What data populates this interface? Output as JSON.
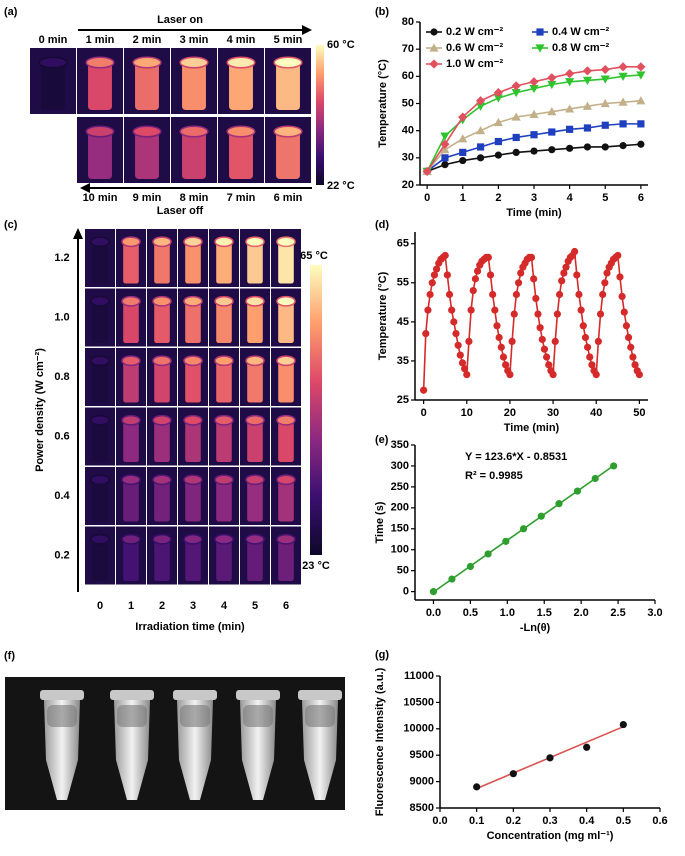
{
  "chart_data": [
    {
      "type": "line",
      "label": "(b)",
      "xlabel": "Time (min)",
      "ylabel": "Temperature (°C)",
      "legend": "upper left",
      "x": [
        0,
        0.5,
        1,
        1.5,
        2,
        2.5,
        3,
        3.5,
        4,
        4.5,
        5,
        5.5,
        6
      ],
      "xlim": [
        -0.2,
        6.2
      ],
      "xticks": [
        0,
        1,
        2,
        3,
        4,
        5,
        6
      ],
      "ylim": [
        20,
        80
      ],
      "yticks": [
        20,
        30,
        40,
        50,
        60,
        70,
        80
      ],
      "series": [
        {
          "name": "0.2 W cm⁻²",
          "color": "#111111",
          "marker": "circle",
          "values": [
            25,
            27.5,
            29,
            30,
            31,
            32,
            32.5,
            33,
            33.5,
            34,
            34,
            34.5,
            35
          ]
        },
        {
          "name": "0.4 W cm⁻²",
          "color": "#1f3fbf",
          "marker": "square",
          "values": [
            25,
            30,
            32,
            34,
            36,
            37.5,
            38.5,
            39.5,
            40.5,
            41,
            42,
            42.5,
            42.5
          ]
        },
        {
          "name": "0.6 W cm⁻²",
          "color": "#c3b08a",
          "marker": "triangle",
          "values": [
            25,
            33,
            37,
            40,
            43,
            45,
            46,
            47,
            48,
            49,
            50,
            50.5,
            51
          ]
        },
        {
          "name": "0.8 W cm⁻²",
          "color": "#2fc42f",
          "marker": "triangle-down",
          "values": [
            25,
            38,
            44,
            49,
            52,
            54,
            55.5,
            57,
            58,
            58.5,
            59,
            60,
            60.5
          ]
        },
        {
          "name": "1.0 W cm⁻²",
          "color": "#e0505e",
          "marker": "diamond",
          "values": [
            25,
            35,
            45,
            51,
            54,
            56.5,
            58,
            59.5,
            61,
            62,
            62.5,
            63.5,
            63.5
          ]
        }
      ]
    },
    {
      "type": "line",
      "label": "(d)",
      "xlabel": "Time (min)",
      "ylabel": "Temperature (°C)",
      "x": [
        0,
        0.5,
        1,
        1.5,
        2,
        2.5,
        3,
        3.5,
        4,
        4.5,
        5,
        5.5,
        6,
        6.5,
        7,
        7.5,
        8,
        8.5,
        9,
        9.5,
        10,
        10.5,
        11,
        11.5,
        12,
        12.5,
        13,
        13.5,
        14,
        14.5,
        15,
        15.5,
        16,
        16.5,
        17,
        17.5,
        18,
        18.5,
        19,
        19.5,
        20,
        20.5,
        21,
        21.5,
        22,
        22.5,
        23,
        23.5,
        24,
        24.5,
        25,
        25.5,
        26,
        26.5,
        27,
        27.5,
        28,
        28.5,
        29,
        29.5,
        30,
        30.5,
        31,
        31.5,
        32,
        32.5,
        33,
        33.5,
        34,
        34.5,
        35,
        35.5,
        36,
        36.5,
        37,
        37.5,
        38,
        38.5,
        39,
        39.5,
        40,
        40.5,
        41,
        41.5,
        42,
        42.5,
        43,
        43.5,
        44,
        44.5,
        45,
        45.5,
        46,
        46.5,
        47,
        47.5,
        48,
        48.5,
        49,
        49.5,
        50
      ],
      "xlim": [
        -2,
        52
      ],
      "xticks": [
        0,
        10,
        20,
        30,
        40,
        50
      ],
      "ylim": [
        25,
        68
      ],
      "yticks": [
        25,
        35,
        45,
        55,
        65
      ],
      "series": [
        {
          "color": "#d42a2a",
          "marker": "circle",
          "values": [
            27.5,
            42,
            48,
            52,
            55,
            57,
            58.5,
            60,
            61,
            61.5,
            62,
            57,
            52,
            48,
            45,
            42,
            39,
            36.5,
            34.5,
            33,
            31.5,
            40,
            48,
            53,
            56,
            58,
            59.5,
            60.5,
            61,
            61.5,
            61.5,
            57,
            52,
            48,
            44,
            41,
            38.5,
            36,
            34,
            32.5,
            31.5,
            40,
            47,
            52,
            55,
            57.5,
            59,
            60,
            61,
            61.5,
            61.5,
            56,
            51,
            47,
            43.5,
            40.5,
            38,
            36,
            34,
            32.5,
            31.5,
            40,
            47,
            52,
            55.5,
            57.5,
            59,
            60.5,
            61.5,
            62,
            63,
            57,
            52,
            48,
            44,
            41,
            38.5,
            36,
            34,
            32.5,
            31.5,
            40,
            47,
            52,
            55,
            57.5,
            59,
            60,
            61,
            61.5,
            62,
            56.5,
            51.5,
            47.5,
            44,
            41,
            38.5,
            36,
            34,
            32.5,
            31.5
          ]
        }
      ]
    },
    {
      "type": "scatter",
      "label": "(e)",
      "xlabel": "-Ln(θ)",
      "ylabel": "Time (s)",
      "annotations": [
        "Y = 123.6*X - 0.8531",
        "R² = 0.9985"
      ],
      "x": [
        0,
        0.25,
        0.5,
        0.74,
        0.98,
        1.22,
        1.46,
        1.7,
        1.95,
        2.19,
        2.44
      ],
      "xlim": [
        -0.25,
        3.0
      ],
      "xticks": [
        {
          "value": 0,
          "label": "0.0"
        },
        {
          "value": 0.5,
          "label": "0.5"
        },
        {
          "value": 1,
          "label": "1.0"
        },
        {
          "value": 1.5,
          "label": "1.5"
        },
        {
          "value": 2,
          "label": "2.0"
        },
        {
          "value": 2.5,
          "label": "2.5"
        },
        {
          "value": 3,
          "label": "3.0"
        }
      ],
      "ylim": [
        -20,
        350
      ],
      "yticks": [
        0,
        50,
        100,
        150,
        200,
        250,
        300,
        350
      ],
      "series": [
        {
          "color": "#2e9e2e",
          "marker": "circle",
          "values": [
            0,
            30,
            60,
            90,
            120,
            150,
            180,
            210,
            240,
            270,
            300
          ]
        }
      ],
      "fit": {
        "color": "#2e9e2e",
        "x": [
          0,
          2.44
        ],
        "values": [
          -0.85,
          300.7
        ]
      }
    },
    {
      "type": "scatter",
      "label": "(g)",
      "xlabel": "Concentration (mg ml⁻¹)",
      "ylabel": "Fluorescence Intensity (a.u.)",
      "x": [
        0.1,
        0.2,
        0.3,
        0.4,
        0.5
      ],
      "xlim": [
        0,
        0.6
      ],
      "xticks": [
        {
          "value": 0,
          "label": "0.0"
        },
        {
          "value": 0.1,
          "label": "0.1"
        },
        {
          "value": 0.2,
          "label": "0.2"
        },
        {
          "value": 0.3,
          "label": "0.3"
        },
        {
          "value": 0.4,
          "label": "0.4"
        },
        {
          "value": 0.5,
          "label": "0.5"
        },
        {
          "value": 0.6,
          "label": "0.6"
        }
      ],
      "ylim": [
        8500,
        11000
      ],
      "yticks": [
        8500,
        9000,
        9500,
        10000,
        10500,
        11000
      ],
      "series": [
        {
          "color": "#111111",
          "marker": "circle",
          "values": [
            8900,
            9150,
            9450,
            9650,
            10080
          ]
        }
      ],
      "fit": {
        "color": "#d9534f",
        "x": [
          0.1,
          0.5
        ],
        "values": [
          8870,
          10040
        ]
      }
    }
  ],
  "panels": {
    "a": {
      "label": "(a)",
      "title_on": "Laser on",
      "title_off": "Laser off",
      "times_top": [
        "0 min",
        "1 min",
        "2 min",
        "3 min",
        "4 min",
        "5 min"
      ],
      "times_bottom": [
        "10 min",
        "9 min",
        "8 min",
        "7 min",
        "6 min"
      ],
      "scale_max": "60 °C",
      "scale_min": "22 °C"
    },
    "c": {
      "label": "(c)",
      "ylabel": "Power density (W cm⁻²)",
      "xlabel": "Irradiation time (min)",
      "power": [
        "1.2",
        "1.0",
        "0.8",
        "0.6",
        "0.4",
        "0.2"
      ],
      "times": [
        "0",
        "1",
        "2",
        "3",
        "4",
        "5",
        "6"
      ],
      "scale_max": "65 °C",
      "scale_min": "23 °C"
    },
    "f": {
      "label": "(f)"
    }
  }
}
